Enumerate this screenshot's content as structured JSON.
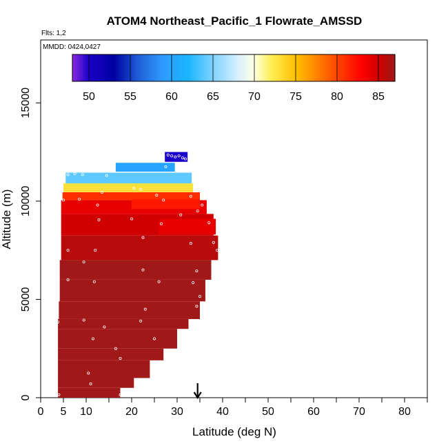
{
  "chart_data": {
    "type": "heatmap",
    "title": "ATOM4 Northeast_Pacific_1 Flowrate_AMSSD",
    "flights_label": "Flts: 1,2",
    "dates_label": "MMDD: 0424,0427",
    "xlabel": "Latitude (deg N)",
    "ylabel": "Altitude (m)",
    "xlim": [
      0,
      85
    ],
    "ylim": [
      0,
      18200
    ],
    "x_major_ticks": [
      0,
      5,
      10,
      20,
      30,
      40,
      50,
      60,
      70,
      80
    ],
    "x_minor_ticks": [
      15,
      25,
      35,
      45,
      55,
      65,
      75,
      85
    ],
    "y_ticks": [
      0,
      5000,
      10000,
      15000
    ],
    "marker_latitude": 34.5,
    "colorbar": {
      "min": 48,
      "max": 87,
      "ticks": [
        50,
        55,
        60,
        65,
        70,
        75,
        80,
        85
      ],
      "stops": [
        {
          "v": 48,
          "c": "#8a2be2"
        },
        {
          "v": 50,
          "c": "#1a00c8"
        },
        {
          "v": 53,
          "c": "#0000a0"
        },
        {
          "v": 56,
          "c": "#1f5fd8"
        },
        {
          "v": 59,
          "c": "#2e9bff"
        },
        {
          "v": 62,
          "c": "#1ab6ff"
        },
        {
          "v": 65,
          "c": "#7fd3ff"
        },
        {
          "v": 68,
          "c": "#d6efff"
        },
        {
          "v": 70,
          "c": "#ffffe0"
        },
        {
          "v": 72,
          "c": "#ffee55"
        },
        {
          "v": 75,
          "c": "#ffc000"
        },
        {
          "v": 77,
          "c": "#ff9000"
        },
        {
          "v": 80,
          "c": "#ff4500"
        },
        {
          "v": 83,
          "c": "#ff0000"
        },
        {
          "v": 85,
          "c": "#d00000"
        },
        {
          "v": 87,
          "c": "#a01818"
        }
      ]
    },
    "cells": [
      {
        "lat0": 27.3,
        "lat1": 32.3,
        "alt0": 12000,
        "alt1": 12500,
        "value": 50
      },
      {
        "lat0": 16.5,
        "lat1": 29.5,
        "alt0": 11500,
        "alt1": 11950,
        "value": 60
      },
      {
        "lat0": 5.5,
        "lat1": 33.2,
        "alt0": 10900,
        "alt1": 11450,
        "value": 64
      },
      {
        "lat0": 5.0,
        "lat1": 33.5,
        "alt0": 10450,
        "alt1": 10900,
        "value": 73
      },
      {
        "lat0": 4.8,
        "lat1": 35.0,
        "alt0": 10050,
        "alt1": 10450,
        "value": 81
      },
      {
        "lat0": 4.5,
        "lat1": 36.5,
        "alt0": 9350,
        "alt1": 10050,
        "value": 84
      },
      {
        "lat0": 4.5,
        "lat1": 38.0,
        "alt0": 8250,
        "alt1": 9350,
        "value": 85
      },
      {
        "lat0": 4.5,
        "lat1": 39.0,
        "alt0": 7000,
        "alt1": 8250,
        "value": 86
      },
      {
        "lat0": 4.2,
        "lat1": 37.5,
        "alt0": 6000,
        "alt1": 7000,
        "value": 87
      },
      {
        "lat0": 4.2,
        "lat1": 36.2,
        "alt0": 4900,
        "alt1": 6000,
        "value": 87
      },
      {
        "lat0": 4.0,
        "lat1": 35.0,
        "alt0": 4000,
        "alt1": 4900,
        "value": 87
      },
      {
        "lat0": 3.8,
        "lat1": 32.5,
        "alt0": 3500,
        "alt1": 4000,
        "value": 87
      },
      {
        "lat0": 3.8,
        "lat1": 30.0,
        "alt0": 2500,
        "alt1": 3500,
        "value": 87
      },
      {
        "lat0": 3.8,
        "lat1": 27.0,
        "alt0": 1900,
        "alt1": 2500,
        "value": 87
      },
      {
        "lat0": 3.8,
        "lat1": 24.0,
        "alt0": 1000,
        "alt1": 1900,
        "value": 87
      },
      {
        "lat0": 3.8,
        "lat1": 20.5,
        "alt0": 500,
        "alt1": 1000,
        "value": 87
      },
      {
        "lat0": 3.8,
        "lat1": 17.5,
        "alt0": 0,
        "alt1": 500,
        "value": 87
      },
      {
        "lat0": 20.0,
        "lat1": 35.0,
        "alt0": 9600,
        "alt1": 10100,
        "value": 82
      },
      {
        "lat0": 26.0,
        "lat1": 38.5,
        "alt0": 8300,
        "alt1": 9100,
        "value": 84
      }
    ],
    "samples": [
      [
        28.0,
        12350
      ],
      [
        28.8,
        12300
      ],
      [
        29.6,
        12250
      ],
      [
        30.4,
        12300
      ],
      [
        31.2,
        12200
      ],
      [
        31.8,
        12150
      ],
      [
        6.0,
        11350
      ],
      [
        7.5,
        11400
      ],
      [
        9.2,
        11350
      ],
      [
        14.5,
        11300
      ],
      [
        27.5,
        11750
      ],
      [
        20.5,
        10650
      ],
      [
        22.0,
        10600
      ],
      [
        13.5,
        10450
      ],
      [
        25.5,
        10300
      ],
      [
        33.0,
        10250
      ],
      [
        5.0,
        10050
      ],
      [
        8.5,
        10100
      ],
      [
        12.5,
        9800
      ],
      [
        27.0,
        10050
      ],
      [
        35.5,
        9800
      ],
      [
        34.5,
        9500
      ],
      [
        30.8,
        9300
      ],
      [
        12.8,
        9050
      ],
      [
        20.0,
        9100
      ],
      [
        26.5,
        8850
      ],
      [
        37.0,
        8900
      ],
      [
        22.5,
        8150
      ],
      [
        38.0,
        7900
      ],
      [
        33.0,
        7850
      ],
      [
        38.8,
        7500
      ],
      [
        6.0,
        7500
      ],
      [
        12.0,
        7500
      ],
      [
        9.5,
        6900
      ],
      [
        22.5,
        6500
      ],
      [
        34.3,
        6450
      ],
      [
        6.0,
        6000
      ],
      [
        11.8,
        5900
      ],
      [
        26.0,
        5900
      ],
      [
        33.5,
        5850
      ],
      [
        35.0,
        5150
      ],
      [
        34.3,
        4650
      ],
      [
        23.0,
        4500
      ],
      [
        9.5,
        3950
      ],
      [
        3.8,
        3850
      ],
      [
        22.0,
        3900
      ],
      [
        14.0,
        3600
      ],
      [
        11.5,
        3000
      ],
      [
        25.0,
        3000
      ],
      [
        16.5,
        2500
      ],
      [
        17.5,
        2000
      ],
      [
        10.5,
        1250
      ],
      [
        11.0,
        700
      ],
      [
        17.5,
        150
      ],
      [
        4.0,
        150
      ]
    ]
  }
}
